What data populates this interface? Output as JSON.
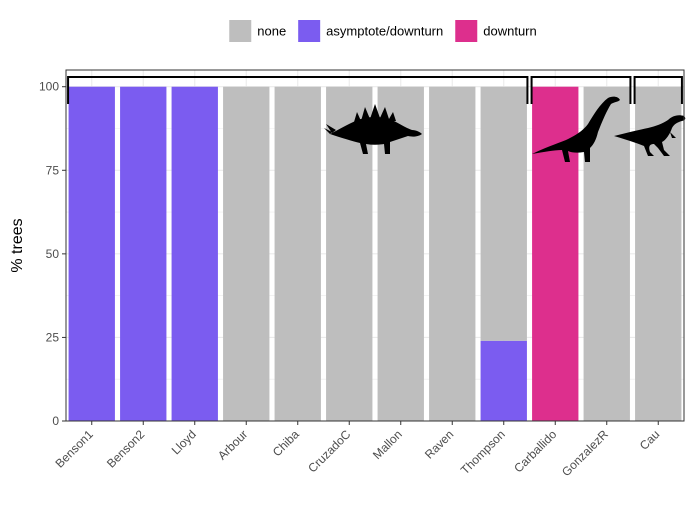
{
  "chart_data": {
    "type": "bar",
    "stacked": true,
    "ylabel": "% trees",
    "xlabel": "",
    "ylim": [
      0,
      105
    ],
    "yticks": [
      0,
      25,
      50,
      75,
      100
    ],
    "grid": true,
    "legend_placement": "top",
    "categories": [
      "Benson1",
      "Benson2",
      "Lloyd",
      "Arbour",
      "Chiba",
      "CruzadoC",
      "Mallon",
      "Raven",
      "Thompson",
      "Carballido",
      "GonzalezR",
      "Cau"
    ],
    "series": [
      {
        "name": "none",
        "color": "#bebebe",
        "values": [
          0,
          0,
          0,
          100,
          100,
          100,
          100,
          100,
          76,
          0,
          100,
          100
        ]
      },
      {
        "name": "asymptote/downturn",
        "color": "#7b5cf0",
        "values": [
          100,
          100,
          100,
          0,
          0,
          0,
          0,
          0,
          24,
          0,
          0,
          0
        ]
      },
      {
        "name": "downturn",
        "color": "#dd2f8d",
        "values": [
          0,
          0,
          0,
          0,
          0,
          0,
          0,
          0,
          0,
          100,
          0,
          0
        ]
      }
    ],
    "stack_order": [
      "asymptote/downturn",
      "downturn",
      "none"
    ],
    "groups": [
      {
        "silhouette": "ornithischian-icon",
        "first": 0,
        "last": 8
      },
      {
        "silhouette": "sauropodomorph-icon",
        "first": 9,
        "last": 10
      },
      {
        "silhouette": "theropod-icon",
        "first": 11,
        "last": 11
      }
    ]
  }
}
